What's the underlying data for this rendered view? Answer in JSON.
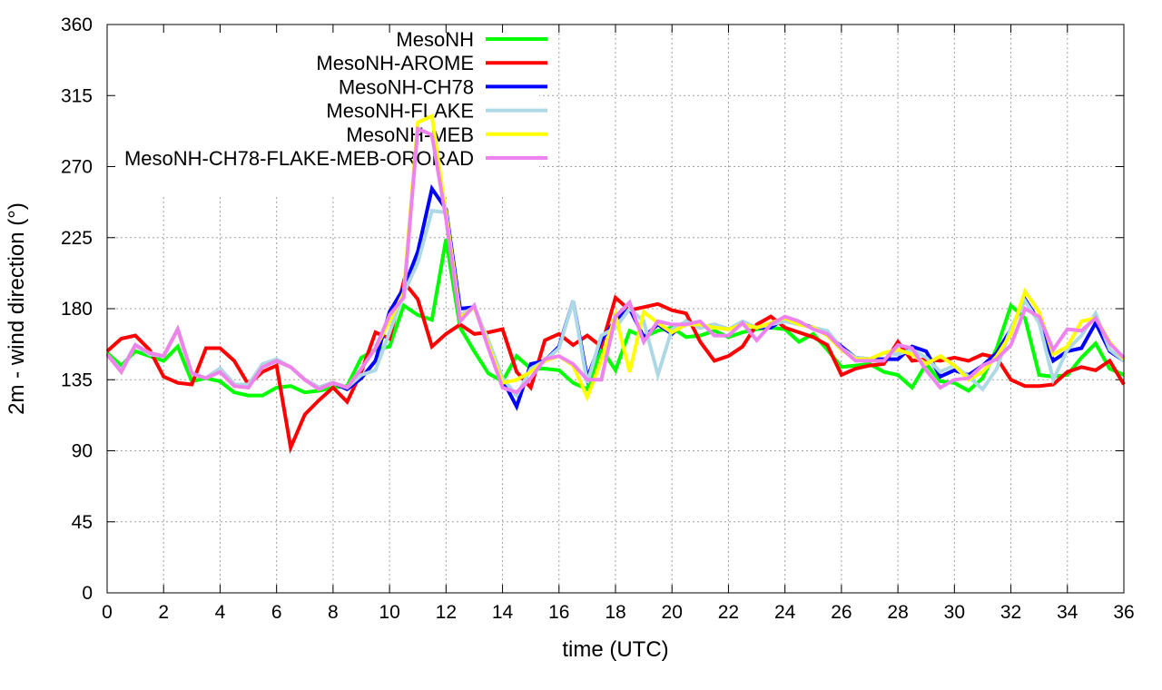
{
  "chart_data": {
    "type": "line",
    "title": "",
    "xlabel": "time (UTC)",
    "ylabel": "2m - wind direction (°)",
    "xlim": [
      0,
      36
    ],
    "ylim": [
      0,
      360
    ],
    "xticks": [
      0,
      2,
      4,
      6,
      8,
      10,
      12,
      14,
      16,
      18,
      20,
      22,
      24,
      26,
      28,
      30,
      32,
      34,
      36
    ],
    "yticks": [
      0,
      45,
      90,
      135,
      180,
      225,
      270,
      315,
      360
    ],
    "grid": true,
    "legend_position": "top-left",
    "x": [
      0,
      0.5,
      1,
      1.5,
      2,
      2.5,
      3,
      3.5,
      4,
      4.5,
      5,
      5.5,
      6,
      6.5,
      7,
      7.5,
      8,
      8.5,
      9,
      9.5,
      10,
      10.5,
      11,
      11.5,
      12,
      12.5,
      13,
      13.5,
      14,
      14.5,
      15,
      15.5,
      16,
      16.5,
      17,
      17.5,
      18,
      18.5,
      19,
      19.5,
      20,
      20.5,
      21,
      21.5,
      22,
      22.5,
      23,
      23.5,
      24,
      24.5,
      25,
      25.5,
      26,
      26.5,
      27,
      27.5,
      28,
      28.5,
      29,
      29.5,
      30,
      30.5,
      31,
      31.5,
      32,
      32.5,
      33,
      33.5,
      34,
      34.5,
      35,
      35.5,
      36
    ],
    "series": [
      {
        "name": "MesoNH",
        "color": "#00ff00",
        "values": [
          152,
          144,
          153,
          150,
          147,
          156,
          134,
          136,
          134,
          127,
          125,
          125,
          130,
          131,
          127,
          128,
          130,
          131,
          149,
          154,
          156,
          182,
          176,
          173,
          224,
          168,
          153,
          139,
          134,
          150,
          142,
          142,
          141,
          133,
          129,
          155,
          141,
          166,
          162,
          166,
          168,
          162,
          163,
          166,
          162,
          165,
          167,
          168,
          167,
          159,
          164,
          154,
          143,
          144,
          145,
          140,
          138,
          130,
          145,
          134,
          133,
          128,
          136,
          155,
          182,
          174,
          138,
          137,
          138,
          149,
          158,
          142,
          138
        ]
      },
      {
        "name": "MesoNH-AROME",
        "color": "#ff0000",
        "values": [
          153,
          161,
          163,
          154,
          137,
          133,
          132,
          155,
          155,
          147,
          132,
          140,
          144,
          92,
          113,
          122,
          130,
          121,
          140,
          165,
          161,
          197,
          186,
          156,
          164,
          170,
          164,
          165,
          167,
          140,
          130,
          160,
          164,
          157,
          163,
          156,
          187,
          179,
          181,
          183,
          179,
          177,
          159,
          147,
          150,
          156,
          170,
          175,
          168,
          165,
          162,
          157,
          138,
          142,
          144,
          145,
          159,
          147,
          148,
          147,
          149,
          147,
          151,
          149,
          135,
          131,
          131,
          132,
          140,
          143,
          141,
          147,
          132
        ]
      },
      {
        "name": "MesoNH-CH78",
        "color": "#0000ff",
        "values": [
          151,
          141,
          157,
          151,
          150,
          167,
          139,
          136,
          142,
          132,
          132,
          143,
          147,
          143,
          135,
          130,
          133,
          129,
          136,
          147,
          178,
          193,
          216,
          256,
          243,
          180,
          181,
          159,
          135,
          118,
          145,
          147,
          156,
          185,
          136,
          160,
          173,
          180,
          162,
          170,
          164,
          172,
          168,
          170,
          167,
          171,
          168,
          168,
          174,
          171,
          168,
          164,
          156,
          149,
          148,
          148,
          148,
          156,
          153,
          137,
          141,
          138,
          144,
          152,
          167,
          186,
          172,
          147,
          153,
          155,
          171,
          153,
          147
        ]
      },
      {
        "name": "MesoNH-FLAKE",
        "color": "#add8e6",
        "values": [
          151,
          141,
          157,
          151,
          150,
          167,
          139,
          136,
          142,
          132,
          132,
          145,
          148,
          143,
          135,
          130,
          133,
          130,
          138,
          141,
          165,
          190,
          209,
          242,
          241,
          176,
          181,
          160,
          136,
          125,
          142,
          147,
          155,
          185,
          133,
          163,
          168,
          180,
          172,
          138,
          167,
          172,
          168,
          170,
          167,
          172,
          168,
          170,
          172,
          170,
          168,
          166,
          155,
          149,
          148,
          152,
          151,
          154,
          149,
          140,
          144,
          137,
          129,
          142,
          168,
          185,
          171,
          135,
          154,
          163,
          177,
          154,
          147
        ]
      },
      {
        "name": "MesoNH-MEB",
        "color": "#ffff00",
        "values": [
          151,
          140,
          157,
          152,
          150,
          167,
          139,
          136,
          140,
          131,
          130,
          143,
          147,
          143,
          135,
          129,
          133,
          130,
          142,
          155,
          172,
          190,
          298,
          302,
          240,
          174,
          181,
          157,
          133,
          135,
          140,
          147,
          150,
          144,
          124,
          147,
          176,
          140,
          178,
          171,
          165,
          170,
          170,
          168,
          167,
          170,
          168,
          171,
          174,
          170,
          168,
          163,
          154,
          148,
          148,
          152,
          154,
          151,
          145,
          150,
          144,
          135,
          140,
          150,
          164,
          191,
          178,
          151,
          156,
          172,
          174,
          159,
          148
        ]
      },
      {
        "name": "MesoNH-CH78-FLAKE-MEB-ORORAD",
        "color": "#ee82ee",
        "values": [
          151,
          140,
          157,
          152,
          150,
          167,
          139,
          136,
          140,
          131,
          130,
          143,
          147,
          143,
          135,
          129,
          133,
          130,
          142,
          155,
          176,
          187,
          294,
          290,
          237,
          172,
          182,
          155,
          130,
          127,
          136,
          148,
          150,
          145,
          135,
          135,
          175,
          184,
          159,
          172,
          170,
          170,
          172,
          163,
          163,
          171,
          160,
          170,
          175,
          172,
          167,
          164,
          155,
          147,
          147,
          147,
          157,
          155,
          141,
          130,
          135,
          136,
          144,
          148,
          157,
          180,
          175,
          154,
          167,
          166,
          174,
          158,
          149
        ]
      }
    ]
  }
}
